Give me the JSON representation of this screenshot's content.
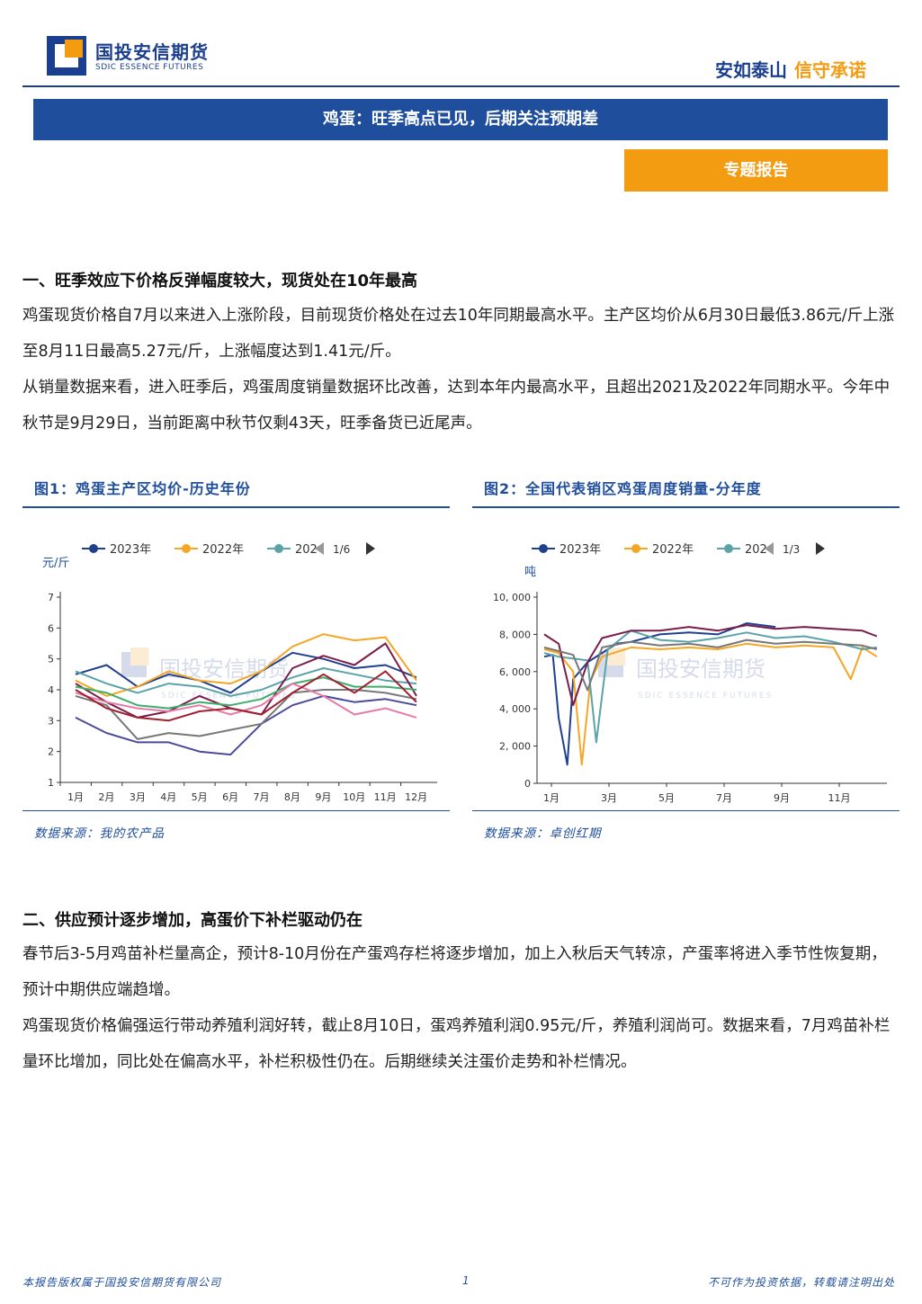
{
  "header": {
    "logo_cn": "国投安信期货",
    "logo_en": "SDIC ESSENCE FUTURES",
    "slogan_part1": "安如泰山",
    "slogan_part2": "信守承诺"
  },
  "banner": {
    "title": "鸡蛋：旺季高点已见，后期关注预期差"
  },
  "tag": {
    "label": "专题报告"
  },
  "section1": {
    "heading": "一、旺季效应下价格反弹幅度较大，现货处在10年最高",
    "p1": "鸡蛋现货价格自7月以来进入上涨阶段，目前现货价格处在过去10年同期最高水平。主产区均价从6月30日最低3.86元/斤上涨至8月11日最高5.27元/斤，上涨幅度达到1.41元/斤。",
    "p2": "从销量数据来看，进入旺季后，鸡蛋周度销量数据环比改善，达到本年内最高水平，且超出2021及2022年同期水平。今年中秋节是9月29日，当前距离中秋节仅剩43天，旺季备货已近尾声。"
  },
  "figures": {
    "fig1": {
      "title": "图1：鸡蛋主产区均价-历史年份",
      "source": "数据来源：我的农产品"
    },
    "fig2": {
      "title": "图2：全国代表销区鸡蛋周度销量-分年度",
      "source": "数据来源：卓创红期"
    },
    "watermark_cn": "国投安信期货",
    "watermark_en": "SDIC ESSENCE FUTURES"
  },
  "chart_data": [
    {
      "type": "line",
      "id": "fig1",
      "ylabel": "元/斤",
      "ylim": [
        1,
        7
      ],
      "yticks": [
        "1",
        "2",
        "3",
        "4",
        "5",
        "6",
        "7"
      ],
      "categories": [
        "1月",
        "2月",
        "3月",
        "4月",
        "5月",
        "6月",
        "7月",
        "8月",
        "9月",
        "10月",
        "11月",
        "12月"
      ],
      "legend": {
        "items": [
          "2023年",
          "2022年",
          "202"
        ],
        "pager": "1/6",
        "placement": "top"
      },
      "series": [
        {
          "name": "2023年",
          "color": "#1f3f8f",
          "values": [
            4.5,
            4.8,
            4.1,
            4.5,
            4.3,
            3.9,
            4.6,
            5.2,
            5.0,
            4.7,
            4.8,
            4.4
          ]
        },
        {
          "name": "2022年",
          "color": "#f5a623",
          "values": [
            4.3,
            3.8,
            4.1,
            4.6,
            4.3,
            4.2,
            4.6,
            5.4,
            5.8,
            5.6,
            5.7,
            4.3
          ]
        },
        {
          "name": "202",
          "color": "#5aa3a8",
          "values": [
            4.6,
            4.2,
            3.9,
            4.2,
            4.1,
            3.8,
            4.0,
            4.4,
            4.7,
            4.5,
            4.3,
            4.2
          ]
        },
        {
          "name": "",
          "color": "#7a1c4a",
          "values": [
            4.2,
            3.6,
            3.1,
            3.3,
            3.8,
            3.4,
            3.2,
            4.7,
            5.1,
            4.8,
            5.5,
            3.8
          ]
        },
        {
          "name": "",
          "color": "#4a4a9a",
          "values": [
            3.1,
            2.6,
            2.3,
            2.3,
            2.0,
            1.9,
            2.9,
            3.5,
            3.8,
            3.6,
            3.7,
            3.5
          ]
        },
        {
          "name": "",
          "color": "#777777",
          "values": [
            3.8,
            3.5,
            2.4,
            2.6,
            2.5,
            2.7,
            2.9,
            3.9,
            4.0,
            4.0,
            3.9,
            3.7
          ]
        },
        {
          "name": "",
          "color": "#3fae6a",
          "values": [
            4.1,
            3.9,
            3.5,
            3.4,
            3.6,
            3.5,
            3.7,
            4.2,
            4.4,
            4.1,
            4.1,
            4.0
          ]
        },
        {
          "name": "",
          "color": "#e87aa8",
          "values": [
            3.9,
            3.6,
            3.4,
            3.3,
            3.5,
            3.2,
            3.5,
            4.2,
            3.8,
            3.2,
            3.4,
            3.1
          ]
        },
        {
          "name": "",
          "color": "#a02030",
          "values": [
            4.0,
            3.4,
            3.1,
            3.0,
            3.3,
            3.4,
            3.2,
            3.9,
            4.5,
            3.9,
            4.6,
            3.6
          ]
        }
      ]
    },
    {
      "type": "line",
      "id": "fig2",
      "ylabel": "吨",
      "ylim": [
        0,
        10000
      ],
      "yticks": [
        "0",
        "2, 000",
        "4, 000",
        "6, 000",
        "8, 000",
        "10, 000"
      ],
      "categories": [
        "1月",
        "3月",
        "5月",
        "7月",
        "9月",
        "11月"
      ],
      "legend": {
        "items": [
          "2023年",
          "2022年",
          "202"
        ],
        "pager": "1/3",
        "placement": "top"
      },
      "series": [
        {
          "name": "2023年",
          "color": "#1f3f8f",
          "x": [
            1,
            1.3,
            1.5,
            1.8,
            2,
            2.5,
            3,
            3.5,
            4,
            5,
            6,
            7,
            8,
            9
          ],
          "values": [
            6800,
            6900,
            3500,
            1000,
            5600,
            6500,
            7000,
            7500,
            7600,
            8000,
            8100,
            8000,
            8600,
            8400
          ]
        },
        {
          "name": "2022年",
          "color": "#f5a623",
          "x": [
            1,
            1.5,
            2,
            2.3,
            2.6,
            3,
            4,
            5,
            6,
            7,
            8,
            9,
            10,
            11,
            11.6,
            12,
            12.5
          ],
          "values": [
            7200,
            7000,
            6000,
            1000,
            5500,
            6800,
            7300,
            7200,
            7300,
            7200,
            7500,
            7300,
            7400,
            7300,
            5600,
            7300,
            6800
          ]
        },
        {
          "name": "202",
          "color": "#5aa3a8",
          "x": [
            1,
            1.5,
            2,
            2.5,
            2.8,
            3.2,
            4,
            5,
            6,
            7,
            8,
            9,
            10,
            11,
            12,
            12.5
          ],
          "values": [
            7000,
            6800,
            6700,
            6600,
            2200,
            7200,
            8200,
            7700,
            7600,
            7800,
            8100,
            7800,
            7900,
            7600,
            7200,
            7300
          ]
        },
        {
          "name": "",
          "color": "#7a1c4a",
          "x": [
            1,
            1.5,
            2,
            2.5,
            3,
            4,
            5,
            6,
            7,
            8,
            9,
            10,
            11,
            12,
            12.5
          ],
          "values": [
            8000,
            7500,
            4200,
            6500,
            7800,
            8200,
            8200,
            8400,
            8200,
            8500,
            8300,
            8400,
            8300,
            8200,
            7900
          ]
        },
        {
          "name": "",
          "color": "#777777",
          "x": [
            1,
            1.5,
            2,
            2.5,
            3,
            4,
            5,
            6,
            7,
            8,
            9,
            10,
            11,
            12,
            12.5
          ],
          "values": [
            7300,
            7100,
            6900,
            5000,
            7300,
            7600,
            7400,
            7500,
            7300,
            7700,
            7500,
            7600,
            7500,
            7400,
            7200
          ]
        }
      ]
    }
  ],
  "section2": {
    "heading": "二、供应预计逐步增加，高蛋价下补栏驱动仍在",
    "p1": "春节后3-5月鸡苗补栏量高企，预计8-10月份在产蛋鸡存栏将逐步增加，加上入秋后天气转凉，产蛋率将进入季节性恢复期，预计中期供应端趋增。",
    "p2": "鸡蛋现货价格偏强运行带动养殖利润好转，截止8月10日，蛋鸡养殖利润0.95元/斤，养殖利润尚可。数据来看，7月鸡苗补栏量环比增加，同比处在偏高水平，补栏积极性仍在。后期继续关注蛋价走势和补栏情况。"
  },
  "footer": {
    "left": "本报告版权属于国投安信期货有限公司",
    "page": "1",
    "right": "不可作为投资依据，转载请注明出处"
  }
}
